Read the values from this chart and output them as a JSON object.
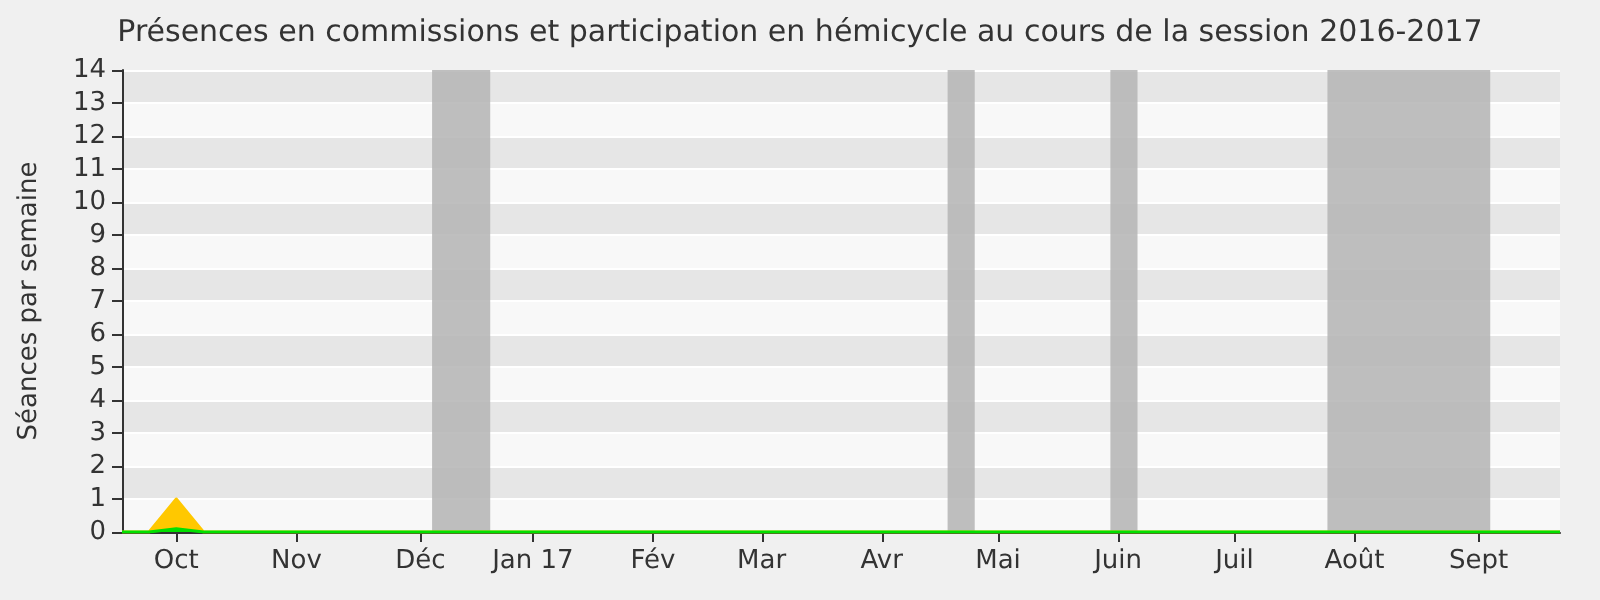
{
  "chart_data": {
    "type": "area",
    "title": "Présences en commissions et participation en hémicycle au cours de la session 2016-2017",
    "ylabel": "Séances par semaine",
    "xlim": [
      "2016-09-17",
      "2017-09-23"
    ],
    "xticks": [
      {
        "value": "2016-10-01",
        "label": "Oct"
      },
      {
        "value": "2016-11-01",
        "label": "Nov"
      },
      {
        "value": "2016-12-03",
        "label": "Déc"
      },
      {
        "value": "2017-01-01",
        "label": "Jan 17"
      },
      {
        "value": "2017-02-01",
        "label": "Fév"
      },
      {
        "value": "2017-03-01",
        "label": "Mar"
      },
      {
        "value": "2017-04-01",
        "label": "Avr"
      },
      {
        "value": "2017-05-01",
        "label": "Mai"
      },
      {
        "value": "2017-06-01",
        "label": "Juin"
      },
      {
        "value": "2017-07-01",
        "label": "Juil"
      },
      {
        "value": "2017-08-01",
        "label": "Août"
      },
      {
        "value": "2017-09-02",
        "label": "Sept"
      }
    ],
    "ylim": [
      0,
      14
    ],
    "yticks": [
      0,
      1,
      2,
      3,
      4,
      5,
      6,
      7,
      8,
      9,
      10,
      11,
      12,
      13,
      14
    ],
    "series": [
      {
        "color": "#ffc800",
        "x": [
          "2016-09-17",
          "2016-09-24",
          "2016-10-01",
          "2016-10-08",
          "2017-09-23"
        ],
        "values": [
          0,
          0,
          1,
          0,
          0
        ]
      },
      {
        "color": "#00e000",
        "x": [
          "2016-09-17",
          "2016-09-24",
          "2016-10-01",
          "2016-10-08",
          "2017-09-23"
        ],
        "values": [
          0,
          0,
          0.1,
          0,
          0
        ]
      }
    ],
    "bands": [
      {
        "axis": "x",
        "from": "2016-12-06",
        "to": "2016-12-21",
        "color": "#b4b4b4"
      },
      {
        "axis": "x",
        "from": "2017-04-18",
        "to": "2017-04-25",
        "color": "#b4b4b4"
      },
      {
        "axis": "x",
        "from": "2017-05-30",
        "to": "2017-06-06",
        "color": "#b4b4b4"
      },
      {
        "axis": "x",
        "from": "2017-07-25",
        "to": "2017-09-05",
        "color": "#b4b4b4"
      }
    ],
    "grid": "y",
    "marker": "none",
    "line_style": "solid"
  }
}
